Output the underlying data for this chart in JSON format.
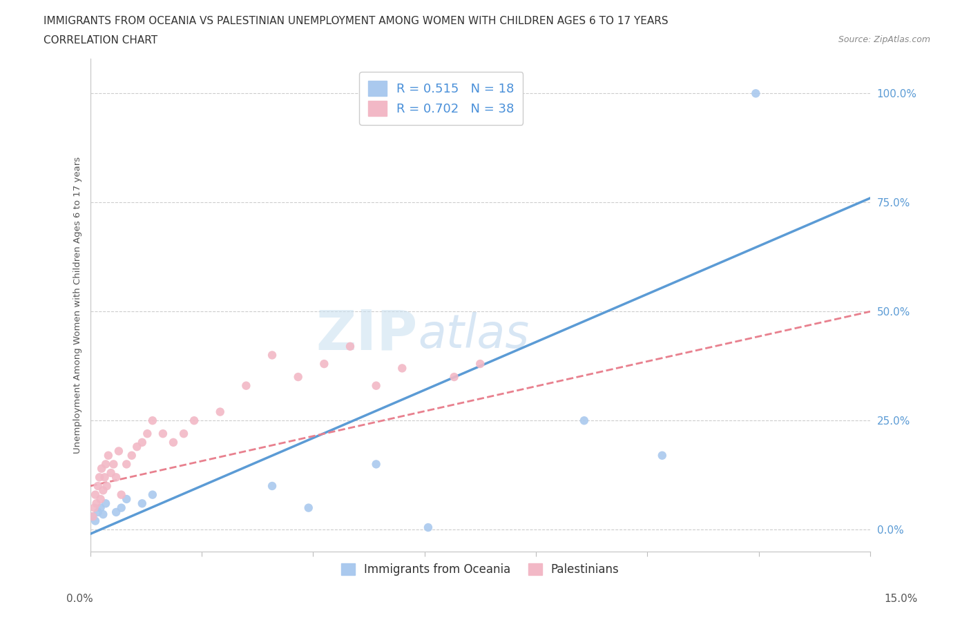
{
  "title_line1": "IMMIGRANTS FROM OCEANIA VS PALESTINIAN UNEMPLOYMENT AMONG WOMEN WITH CHILDREN AGES 6 TO 17 YEARS",
  "title_line2": "CORRELATION CHART",
  "source": "Source: ZipAtlas.com",
  "xlabel_bottom_left": "0.0%",
  "xlabel_bottom_right": "15.0%",
  "ylabel": "Unemployment Among Women with Children Ages 6 to 17 years",
  "y_ticks": [
    0.0,
    25.0,
    50.0,
    75.0,
    100.0
  ],
  "x_range": [
    0.0,
    15.0
  ],
  "y_range": [
    -5.0,
    108.0
  ],
  "legend_blue_label": "R = 0.515   N = 18",
  "legend_pink_label": "R = 0.702   N = 38",
  "legend_bottom_blue": "Immigrants from Oceania",
  "legend_bottom_pink": "Palestinians",
  "blue_color": "#aac9ee",
  "pink_color": "#f2b8c6",
  "blue_line_color": "#5b9bd5",
  "pink_line_color": "#e8808e",
  "watermark_zip": "ZIP",
  "watermark_atlas": "atlas",
  "blue_scatter_x": [
    0.05,
    0.1,
    0.15,
    0.2,
    0.25,
    0.3,
    0.5,
    0.6,
    0.7,
    1.0,
    1.2,
    3.5,
    4.2,
    5.5,
    6.5,
    9.5,
    11.0,
    12.8
  ],
  "blue_scatter_y": [
    3.0,
    2.0,
    4.0,
    5.0,
    3.5,
    6.0,
    4.0,
    5.0,
    7.0,
    6.0,
    8.0,
    10.0,
    5.0,
    15.0,
    0.5,
    25.0,
    17.0,
    100.0
  ],
  "pink_scatter_x": [
    0.05,
    0.08,
    0.1,
    0.12,
    0.15,
    0.18,
    0.2,
    0.22,
    0.25,
    0.28,
    0.3,
    0.32,
    0.35,
    0.4,
    0.45,
    0.5,
    0.55,
    0.6,
    0.7,
    0.8,
    0.9,
    1.0,
    1.1,
    1.2,
    1.4,
    1.6,
    1.8,
    2.0,
    2.5,
    3.0,
    3.5,
    4.0,
    4.5,
    5.0,
    5.5,
    6.0,
    7.0,
    7.5
  ],
  "pink_scatter_y": [
    3.0,
    5.0,
    8.0,
    6.0,
    10.0,
    12.0,
    7.0,
    14.0,
    9.0,
    12.0,
    15.0,
    10.0,
    17.0,
    13.0,
    15.0,
    12.0,
    18.0,
    8.0,
    15.0,
    17.0,
    19.0,
    20.0,
    22.0,
    25.0,
    22.0,
    20.0,
    22.0,
    25.0,
    27.0,
    33.0,
    40.0,
    35.0,
    38.0,
    42.0,
    33.0,
    37.0,
    35.0,
    38.0
  ],
  "blue_line_x0": 0.0,
  "blue_line_y0": -1.0,
  "blue_line_x1": 15.0,
  "blue_line_y1": 76.0,
  "pink_line_x0": 0.0,
  "pink_line_y0": 10.0,
  "pink_line_x1": 15.0,
  "pink_line_y1": 50.0
}
